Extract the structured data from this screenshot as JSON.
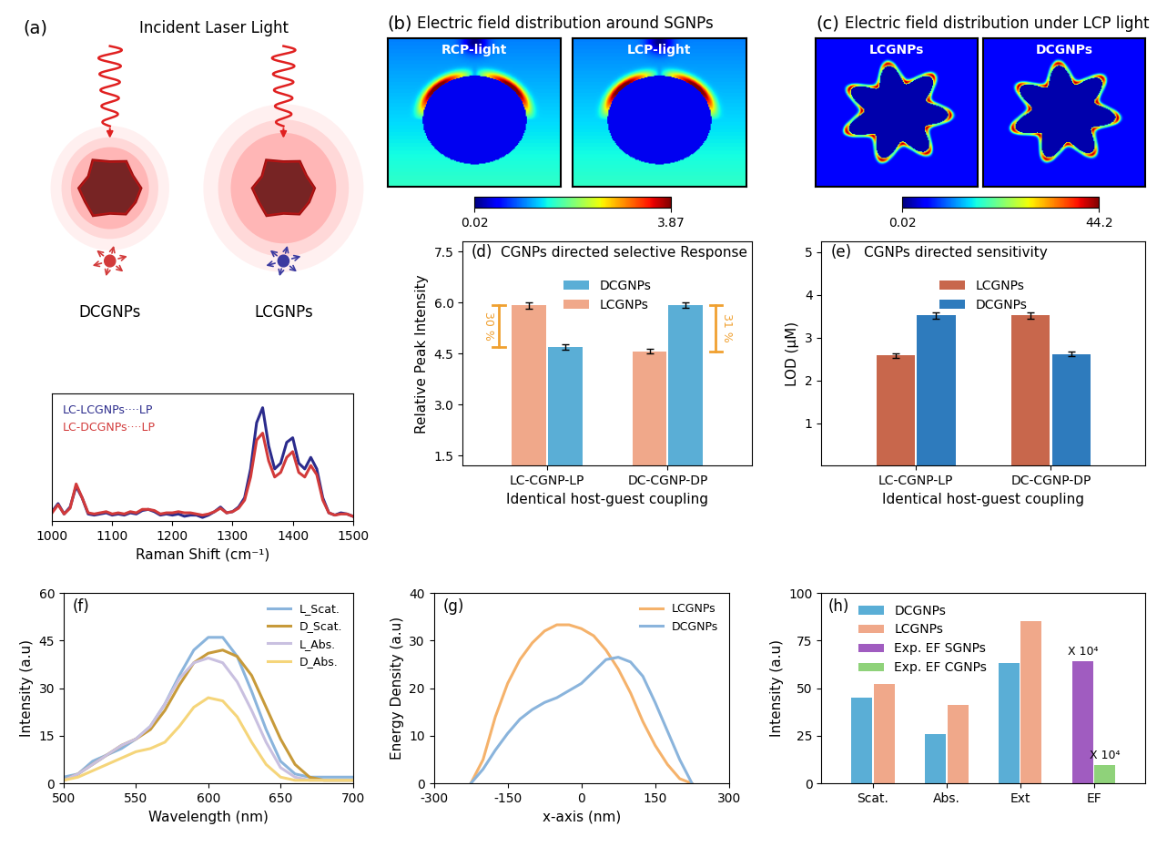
{
  "chart_data": [
    {
      "type": "illustration",
      "panel": "(a)",
      "title": "Incident Laser Light",
      "labels": [
        "DCGNPs",
        "LCGNPs"
      ]
    },
    {
      "type": "line",
      "xlabel": "Raman Shift (cm⁻¹)",
      "x": [
        1000,
        1010,
        1020,
        1030,
        1040,
        1050,
        1060,
        1070,
        1080,
        1090,
        1100,
        1110,
        1120,
        1130,
        1140,
        1150,
        1160,
        1170,
        1180,
        1190,
        1200,
        1210,
        1220,
        1230,
        1240,
        1250,
        1260,
        1270,
        1280,
        1290,
        1300,
        1310,
        1320,
        1330,
        1340,
        1350,
        1360,
        1370,
        1380,
        1390,
        1400,
        1410,
        1420,
        1430,
        1440,
        1450,
        1460,
        1470,
        1480,
        1490,
        1500
      ],
      "series": [
        {
          "name": "LC-LCGNPs····LP",
          "color": "#2b2b8c",
          "values": [
            0.08,
            0.15,
            0.06,
            0.12,
            0.3,
            0.2,
            0.06,
            0.05,
            0.06,
            0.07,
            0.05,
            0.06,
            0.05,
            0.07,
            0.06,
            0.09,
            0.1,
            0.08,
            0.05,
            0.06,
            0.05,
            0.06,
            0.04,
            0.05,
            0.05,
            0.03,
            0.05,
            0.08,
            0.12,
            0.07,
            0.08,
            0.12,
            0.2,
            0.45,
            0.85,
            0.98,
            0.65,
            0.45,
            0.5,
            0.68,
            0.72,
            0.5,
            0.45,
            0.55,
            0.45,
            0.2,
            0.07,
            0.05,
            0.07,
            0.06,
            0.04
          ]
        },
        {
          "name": "LC-DCGNPs····LP",
          "color": "#d23a3a",
          "values": [
            0.07,
            0.14,
            0.06,
            0.11,
            0.32,
            0.2,
            0.07,
            0.06,
            0.07,
            0.08,
            0.06,
            0.07,
            0.06,
            0.08,
            0.07,
            0.1,
            0.1,
            0.09,
            0.06,
            0.07,
            0.07,
            0.08,
            0.07,
            0.07,
            0.06,
            0.05,
            0.06,
            0.08,
            0.11,
            0.07,
            0.08,
            0.11,
            0.18,
            0.38,
            0.7,
            0.76,
            0.52,
            0.38,
            0.42,
            0.55,
            0.6,
            0.42,
            0.38,
            0.48,
            0.4,
            0.18,
            0.07,
            0.05,
            0.06,
            0.06,
            0.04
          ]
        }
      ],
      "xlim": [
        1000,
        1500
      ],
      "xticks": [
        1000,
        1100,
        1200,
        1300,
        1400,
        1500
      ],
      "ylim": [
        0,
        1.1
      ],
      "yticks": [],
      "tick_labels": "x",
      "legend": "upper left"
    },
    {
      "type": "heatmap",
      "panel": "(b)",
      "title": "Electric field distribution around SGNPs",
      "images": [
        "RCP-light",
        "LCP-light"
      ],
      "colorbar": {
        "range": [
          0.02,
          3.87
        ],
        "ticks": [
          0.02,
          3.87
        ]
      }
    },
    {
      "type": "heatmap",
      "panel": "(c)",
      "title": "Electric field distribution under LCP light",
      "images": [
        "LCGNPs",
        "DCGNPs"
      ],
      "colorbar": {
        "range": [
          0.02,
          44.2
        ],
        "ticks": [
          0.02,
          44.2
        ]
      }
    },
    {
      "type": "bar",
      "panel": "(d)",
      "title": "CGNPs directed selective Response",
      "xlabel": "Identical host-guest coupling",
      "ylabel": "Relative Peak Intensity",
      "categories": [
        "LC-CGNP-LP",
        "DC-CGNP-DP"
      ],
      "series": [
        {
          "name": "LCGNPs",
          "color": "#f0a88a",
          "values": [
            5.92,
            4.57
          ],
          "errors": [
            0.09,
            0.07
          ]
        },
        {
          "name": "DCGNPs",
          "color": "#5aaed6",
          "values": [
            4.7,
            5.93
          ],
          "errors": [
            0.08,
            0.09
          ]
        }
      ],
      "legend_order": [
        "DCGNPs",
        "LCGNPs"
      ],
      "ylim": [
        1.2,
        7.8
      ],
      "yticks": [
        1.5,
        3.0,
        4.5,
        6.0,
        7.5
      ],
      "legend": "upper center",
      "annotations": [
        {
          "text": "30 %",
          "category": "LC-CGNP-LP",
          "from": 4.7,
          "to": 5.92
        },
        {
          "text": "31 %",
          "category": "DC-CGNP-DP",
          "from": 4.57,
          "to": 5.93
        }
      ]
    },
    {
      "type": "bar",
      "panel": "(e)",
      "title": "CGNPs directed sensitivity",
      "xlabel": "Identical host-guest coupling",
      "ylabel": "LOD (μM)",
      "categories": [
        "LC-CGNP-LP",
        "DC-CGNP-DP"
      ],
      "series": [
        {
          "name": "LCGNPs",
          "color": "#c8674c",
          "values": [
            2.58,
            3.52
          ],
          "errors": [
            0.06,
            0.07
          ]
        },
        {
          "name": "DCGNPs",
          "color": "#2e7bbd",
          "values": [
            3.52,
            2.62
          ],
          "errors": [
            0.07,
            0.06
          ]
        }
      ],
      "legend_order": [
        "LCGNPs",
        "DCGNPs"
      ],
      "ylim": [
        0,
        5.25
      ],
      "yticks": [
        1,
        2,
        3,
        4,
        5
      ],
      "legend": "upper center"
    },
    {
      "type": "line",
      "panel": "(f)",
      "xlabel": "Wavelength (nm)",
      "ylabel": "Intensity (a.u)",
      "x": [
        500,
        510,
        520,
        530,
        540,
        550,
        560,
        570,
        580,
        590,
        600,
        610,
        620,
        630,
        640,
        650,
        660,
        670,
        680,
        690,
        700
      ],
      "series": [
        {
          "name": "L_Scat.",
          "color": "#8ab4dc",
          "values": [
            2,
            3,
            7,
            9,
            11,
            14,
            18,
            25,
            34,
            42,
            46,
            46,
            40,
            29,
            17,
            7,
            3,
            2,
            2,
            2,
            2
          ]
        },
        {
          "name": "D_Scat.",
          "color": "#c79a3a",
          "values": [
            1,
            3,
            6,
            9,
            12,
            14,
            17,
            23,
            31,
            38,
            41,
            42,
            40,
            34,
            24,
            14,
            6,
            2,
            1,
            1,
            1
          ]
        },
        {
          "name": "L_Abs.",
          "color": "#c9c0e0",
          "values": [
            1,
            3,
            6,
            9,
            12,
            14,
            18,
            25,
            33,
            38,
            39.5,
            38,
            32,
            23,
            13,
            5,
            2,
            1,
            1,
            1,
            1
          ]
        },
        {
          "name": "D_Abs.",
          "color": "#f5d57a",
          "values": [
            1,
            2,
            4,
            6,
            8,
            10,
            11,
            13,
            18,
            24,
            27,
            26,
            21,
            13,
            6,
            2,
            1,
            1,
            1,
            1,
            1
          ]
        }
      ],
      "xlim": [
        500,
        700
      ],
      "xticks": [
        500,
        550,
        600,
        650,
        700
      ],
      "ylim": [
        0,
        60
      ],
      "yticks": [
        0,
        15,
        30,
        45,
        60
      ],
      "legend": "upper right"
    },
    {
      "type": "line",
      "panel": "(g)",
      "xlabel": "x-axis (nm)",
      "ylabel": "Energy Density (a.u)",
      "x": [
        -225,
        -200,
        -175,
        -150,
        -125,
        -100,
        -75,
        -50,
        -25,
        0,
        25,
        50,
        75,
        100,
        125,
        150,
        175,
        200,
        225
      ],
      "series": [
        {
          "name": "LCGNPs",
          "color": "#f5b26b",
          "values": [
            0,
            5,
            14,
            21,
            26,
            29.5,
            32,
            33.3,
            33.3,
            32.5,
            31,
            28,
            24,
            19,
            13,
            8,
            4,
            1,
            0
          ]
        },
        {
          "name": "DCGNPs",
          "color": "#8ab4dc",
          "values": [
            0,
            3,
            7,
            10.5,
            13.5,
            15.5,
            17,
            18,
            19.5,
            21,
            23.5,
            26,
            26.5,
            25.5,
            22.5,
            17,
            11,
            5,
            0
          ]
        }
      ],
      "xlim": [
        -300,
        300
      ],
      "xticks": [
        -300,
        -150,
        0,
        150,
        300
      ],
      "ylim": [
        0,
        40
      ],
      "yticks": [
        0,
        10,
        20,
        30,
        40
      ],
      "legend": "upper right"
    },
    {
      "type": "bar",
      "panel": "(h)",
      "ylabel": "Intensity (a.u)",
      "categories": [
        "Scat.",
        "Abs.",
        "Ext",
        "EF"
      ],
      "series": [
        {
          "name": "DCGNPs",
          "color": "#5aaed6",
          "values": [
            45,
            26,
            63,
            null
          ]
        },
        {
          "name": "LCGNPs",
          "color": "#f0a88a",
          "values": [
            52,
            41,
            85,
            null
          ]
        },
        {
          "name": "Exp. EF SGNPs",
          "color": "#a05cc0",
          "values": [
            null,
            null,
            null,
            64
          ]
        },
        {
          "name": "Exp. EF CGNPs",
          "color": "#8fd27a",
          "values": [
            null,
            null,
            null,
            9.5
          ]
        }
      ],
      "legend_order": [
        "DCGNPs",
        "LCGNPs",
        "Exp. EF SGNPs",
        "Exp. EF CGNPs"
      ],
      "ylim": [
        0,
        100
      ],
      "yticks": [
        0,
        25,
        50,
        75,
        100
      ],
      "legend": "upper left",
      "annotations": [
        {
          "text": "X 10⁴",
          "category": "EF",
          "series": "Exp. EF SGNPs"
        },
        {
          "text": "X 10⁴",
          "category": "EF",
          "series": "Exp. EF CGNPs"
        }
      ]
    }
  ]
}
